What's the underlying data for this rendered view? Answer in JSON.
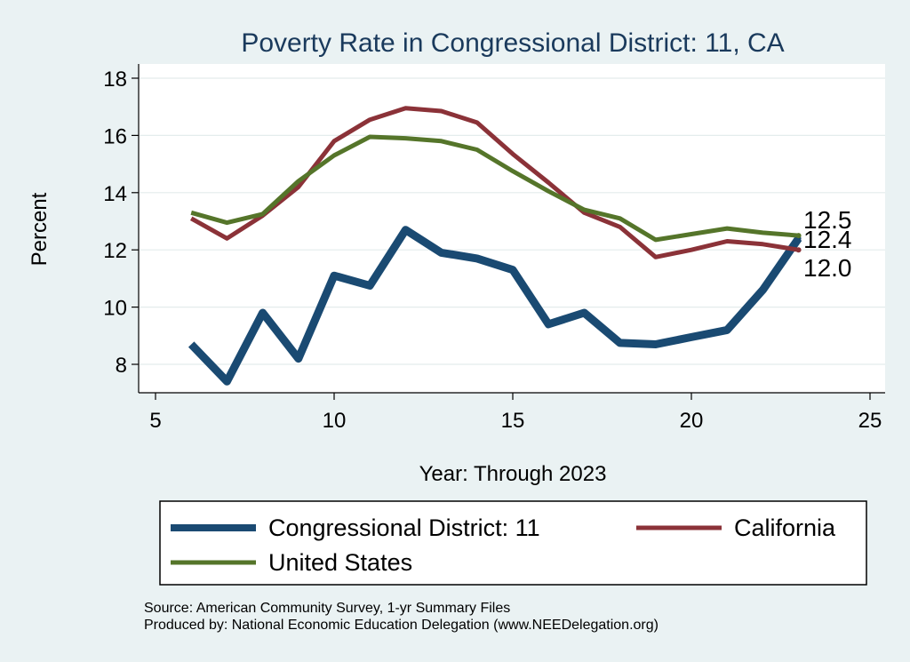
{
  "chart_data": {
    "type": "line",
    "title": "Poverty Rate in Congressional District:  11, CA",
    "xlabel": "Year: Through 2023",
    "ylabel": "Percent",
    "xlim": [
      5,
      25
    ],
    "ylim": [
      7,
      18.5
    ],
    "xticks": [
      5,
      10,
      15,
      20,
      25
    ],
    "yticks": [
      8,
      10,
      12,
      14,
      16,
      18
    ],
    "grid": true,
    "legend_position": "bottom",
    "series": [
      {
        "name": "Congressional District:  11",
        "color": "#1a4a72",
        "x": [
          6,
          7,
          8,
          9,
          10,
          11,
          12,
          13,
          14,
          15,
          16,
          17,
          18,
          19,
          20,
          21,
          22,
          23
        ],
        "values": [
          8.7,
          7.4,
          9.8,
          8.2,
          11.1,
          10.75,
          12.7,
          11.9,
          11.7,
          11.3,
          9.4,
          9.8,
          8.75,
          8.7,
          8.95,
          9.2,
          10.6,
          12.4
        ],
        "end_label": "12.4"
      },
      {
        "name": "California",
        "color": "#8b3238",
        "x": [
          6,
          7,
          8,
          9,
          10,
          11,
          12,
          13,
          14,
          15,
          16,
          17,
          18,
          19,
          20,
          21,
          22,
          23
        ],
        "values": [
          13.1,
          12.4,
          13.2,
          14.2,
          15.8,
          16.55,
          16.95,
          16.85,
          16.45,
          15.35,
          14.35,
          13.3,
          12.8,
          11.75,
          12.0,
          12.3,
          12.2,
          12.0
        ],
        "end_label": "12.0"
      },
      {
        "name": "United States",
        "color": "#55752a",
        "x": [
          6,
          7,
          8,
          9,
          10,
          11,
          12,
          13,
          14,
          15,
          16,
          17,
          18,
          19,
          20,
          21,
          22,
          23
        ],
        "values": [
          13.3,
          12.95,
          13.25,
          14.4,
          15.3,
          15.95,
          15.9,
          15.8,
          15.5,
          14.75,
          14.05,
          13.4,
          13.1,
          12.35,
          12.55,
          12.75,
          12.6,
          12.5
        ],
        "end_label": "12.5"
      }
    ]
  },
  "legend": {
    "items": [
      "Congressional District:  11",
      "California",
      "United States"
    ]
  },
  "notes": {
    "source": "Source: American Community Survey, 1-yr Summary Files",
    "produced_by": "Produced by: National Economic Education Delegation (www.NEEDelegation.org)"
  },
  "colors": {
    "background": "#eaf2f3",
    "plot_background": "#ffffff",
    "title": "#1a3a5c",
    "grid": "#e4ecec"
  }
}
